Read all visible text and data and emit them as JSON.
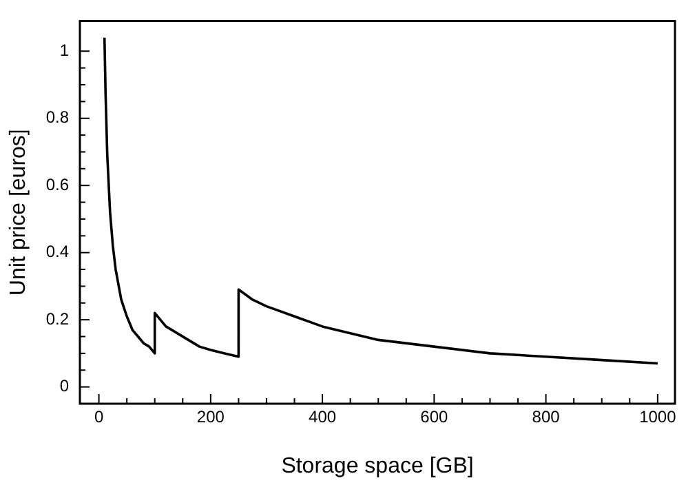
{
  "chart_data": {
    "type": "line",
    "xlabel": "Storage space [GB]",
    "ylabel": "Unit price [euros]",
    "x": [
      10,
      12,
      15,
      20,
      25,
      30,
      40,
      50,
      60,
      70,
      80,
      90,
      100,
      100,
      120,
      140,
      160,
      180,
      200,
      225,
      250,
      250,
      275,
      300,
      350,
      400,
      450,
      500,
      600,
      700,
      800,
      900,
      1000
    ],
    "series": [
      {
        "color": "#000000",
        "values": [
          1.04,
          0.87,
          0.69,
          0.52,
          0.42,
          0.35,
          0.26,
          0.21,
          0.17,
          0.15,
          0.13,
          0.12,
          0.1,
          0.22,
          0.18,
          0.16,
          0.14,
          0.12,
          0.11,
          0.1,
          0.09,
          0.29,
          0.26,
          0.24,
          0.21,
          0.18,
          0.16,
          0.14,
          0.12,
          0.1,
          0.09,
          0.08,
          0.07
        ]
      }
    ],
    "xlim": [
      -34,
      1031
    ],
    "ylim": [
      -0.05,
      1.09
    ],
    "xticks": [
      0,
      {
        "value": 50,
        "label": null
      },
      200,
      {
        "value": 100,
        "label": null
      },
      {
        "value": 150,
        "label": null
      },
      {
        "value": 250,
        "label": null
      },
      {
        "value": 300,
        "label": null
      },
      {
        "value": 350,
        "label": null
      },
      400,
      {
        "value": 450,
        "label": null
      },
      {
        "value": 500,
        "label": null
      },
      {
        "value": 550,
        "label": null
      },
      600,
      {
        "value": 650,
        "label": null
      },
      {
        "value": 700,
        "label": null
      },
      {
        "value": 750,
        "label": null
      },
      800,
      {
        "value": 850,
        "label": null
      },
      {
        "value": 900,
        "label": null
      },
      {
        "value": 950,
        "label": null
      },
      1000
    ],
    "yticks": [
      0,
      {
        "value": 0.05,
        "label": null
      },
      {
        "value": 0.1,
        "label": null
      },
      {
        "value": 0.15,
        "label": null
      },
      0.2,
      {
        "value": 0.25,
        "label": null
      },
      {
        "value": 0.3,
        "label": null
      },
      {
        "value": 0.35,
        "label": null
      },
      0.4,
      {
        "value": 0.45,
        "label": null
      },
      {
        "value": 0.5,
        "label": null
      },
      {
        "value": 0.55,
        "label": null
      },
      0.6,
      {
        "value": 0.65,
        "label": null
      },
      {
        "value": 0.7,
        "label": null
      },
      {
        "value": 0.75,
        "label": null
      },
      0.8,
      {
        "value": 0.85,
        "label": null
      },
      {
        "value": 0.9,
        "label": null
      },
      {
        "value": 0.95,
        "label": null
      },
      1
    ],
    "grid": false,
    "legend": false,
    "marker": "none",
    "line_style": "solid"
  }
}
